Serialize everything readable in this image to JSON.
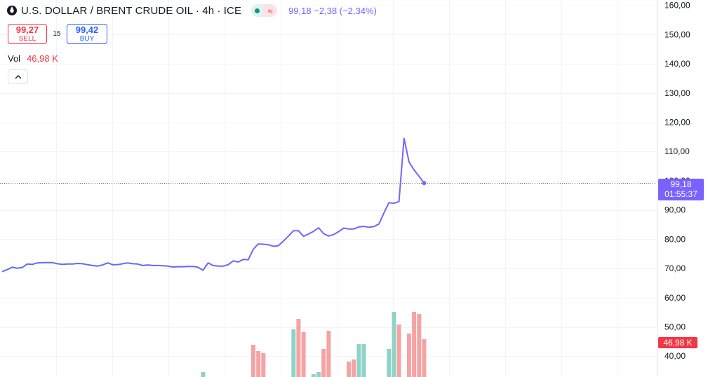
{
  "legend": {
    "title": "U.S. DOLLAR / BRENT CRUDE OIL · 4h · ICE",
    "ohlc": "99,18  −2,38 (−2,34%)",
    "status_icon": "approx-icon",
    "status_glyph": "≈"
  },
  "trade": {
    "sell_price": "99,27",
    "sell_label": "SELL",
    "spread": "15",
    "buy_price": "99,42",
    "buy_label": "BUY"
  },
  "volume_legend": {
    "label": "Vol",
    "value": "46,98 K"
  },
  "last_price": {
    "price": "99,18",
    "countdown": "01:55:37"
  },
  "volume_badge": "46,98 K",
  "colors": {
    "line": "#5b6cf0",
    "line_end": "#7b61ff",
    "vol_up": "#8fd3c6",
    "vol_down": "#f5a3a3",
    "sell": "#f23645",
    "buy": "#2962ff"
  },
  "chart_data": {
    "type": "line",
    "y_axis_ticks": [
      "160,00",
      "150,00",
      "140,00",
      "130,00",
      "120,00",
      "110,00",
      "100,00",
      "90,00",
      "80,00",
      "70,00",
      "60,00",
      "50,00",
      "40,00"
    ],
    "ylim": [
      38.5,
      161
    ],
    "grid": true,
    "series": [
      {
        "values": [
          68.9,
          69.6,
          70.4,
          70.1,
          70.3,
          71.5,
          71.4,
          71.9,
          72.0,
          72.0,
          72.0,
          71.6,
          71.4,
          71.5,
          71.5,
          71.7,
          71.6,
          71.3,
          71.0,
          70.8,
          71.2,
          71.9,
          71.3,
          71.3,
          71.6,
          71.9,
          71.6,
          71.5,
          71.0,
          71.2,
          71.0,
          71.0,
          70.9,
          70.8,
          70.5,
          70.6,
          70.6,
          70.7,
          70.7,
          70.4,
          69.4,
          71.9,
          71.0,
          70.8,
          70.8,
          71.3,
          72.6,
          72.2,
          73.1,
          73.0,
          76.6,
          78.4,
          78.3,
          78.1,
          77.6,
          77.8,
          79.4,
          81.1,
          82.9,
          82.9,
          81.0,
          81.8,
          82.7,
          83.9,
          81.9,
          81.1,
          81.6,
          82.6,
          83.8,
          83.5,
          83.5,
          84.2,
          84.4,
          84.1,
          84.3,
          85.2,
          89.0,
          92.5,
          92.3,
          92.9,
          114.5,
          106.4,
          103.7,
          101.5,
          99.2
        ]
      }
    ],
    "volume": {
      "unit": "K",
      "bars": [
        {
          "x": 40,
          "v": 3.5,
          "dir": "up"
        },
        {
          "x": 50,
          "v": 23,
          "dir": "down"
        },
        {
          "x": 51,
          "v": 18.5,
          "dir": "down"
        },
        {
          "x": 52,
          "v": 17,
          "dir": "down"
        },
        {
          "x": 58,
          "v": 34,
          "dir": "up"
        },
        {
          "x": 59,
          "v": 41.5,
          "dir": "down"
        },
        {
          "x": 60,
          "v": 32,
          "dir": "down"
        },
        {
          "x": 62,
          "v": 2,
          "dir": "up"
        },
        {
          "x": 63,
          "v": 3.5,
          "dir": "up"
        },
        {
          "x": 64,
          "v": 20,
          "dir": "down"
        },
        {
          "x": 65,
          "v": 33,
          "dir": "down"
        },
        {
          "x": 69,
          "v": 11,
          "dir": "down"
        },
        {
          "x": 70,
          "v": 12.5,
          "dir": "down"
        },
        {
          "x": 71,
          "v": 23.5,
          "dir": "up"
        },
        {
          "x": 72,
          "v": 23.5,
          "dir": "up"
        },
        {
          "x": 77,
          "v": 20,
          "dir": "up"
        },
        {
          "x": 78,
          "v": 46.5,
          "dir": "up"
        },
        {
          "x": 79,
          "v": 37.5,
          "dir": "down"
        },
        {
          "x": 81,
          "v": 31,
          "dir": "down"
        },
        {
          "x": 82,
          "v": 46.5,
          "dir": "down"
        },
        {
          "x": 83,
          "v": 45,
          "dir": "down"
        },
        {
          "x": 84,
          "v": 27,
          "dir": "down"
        }
      ]
    }
  }
}
